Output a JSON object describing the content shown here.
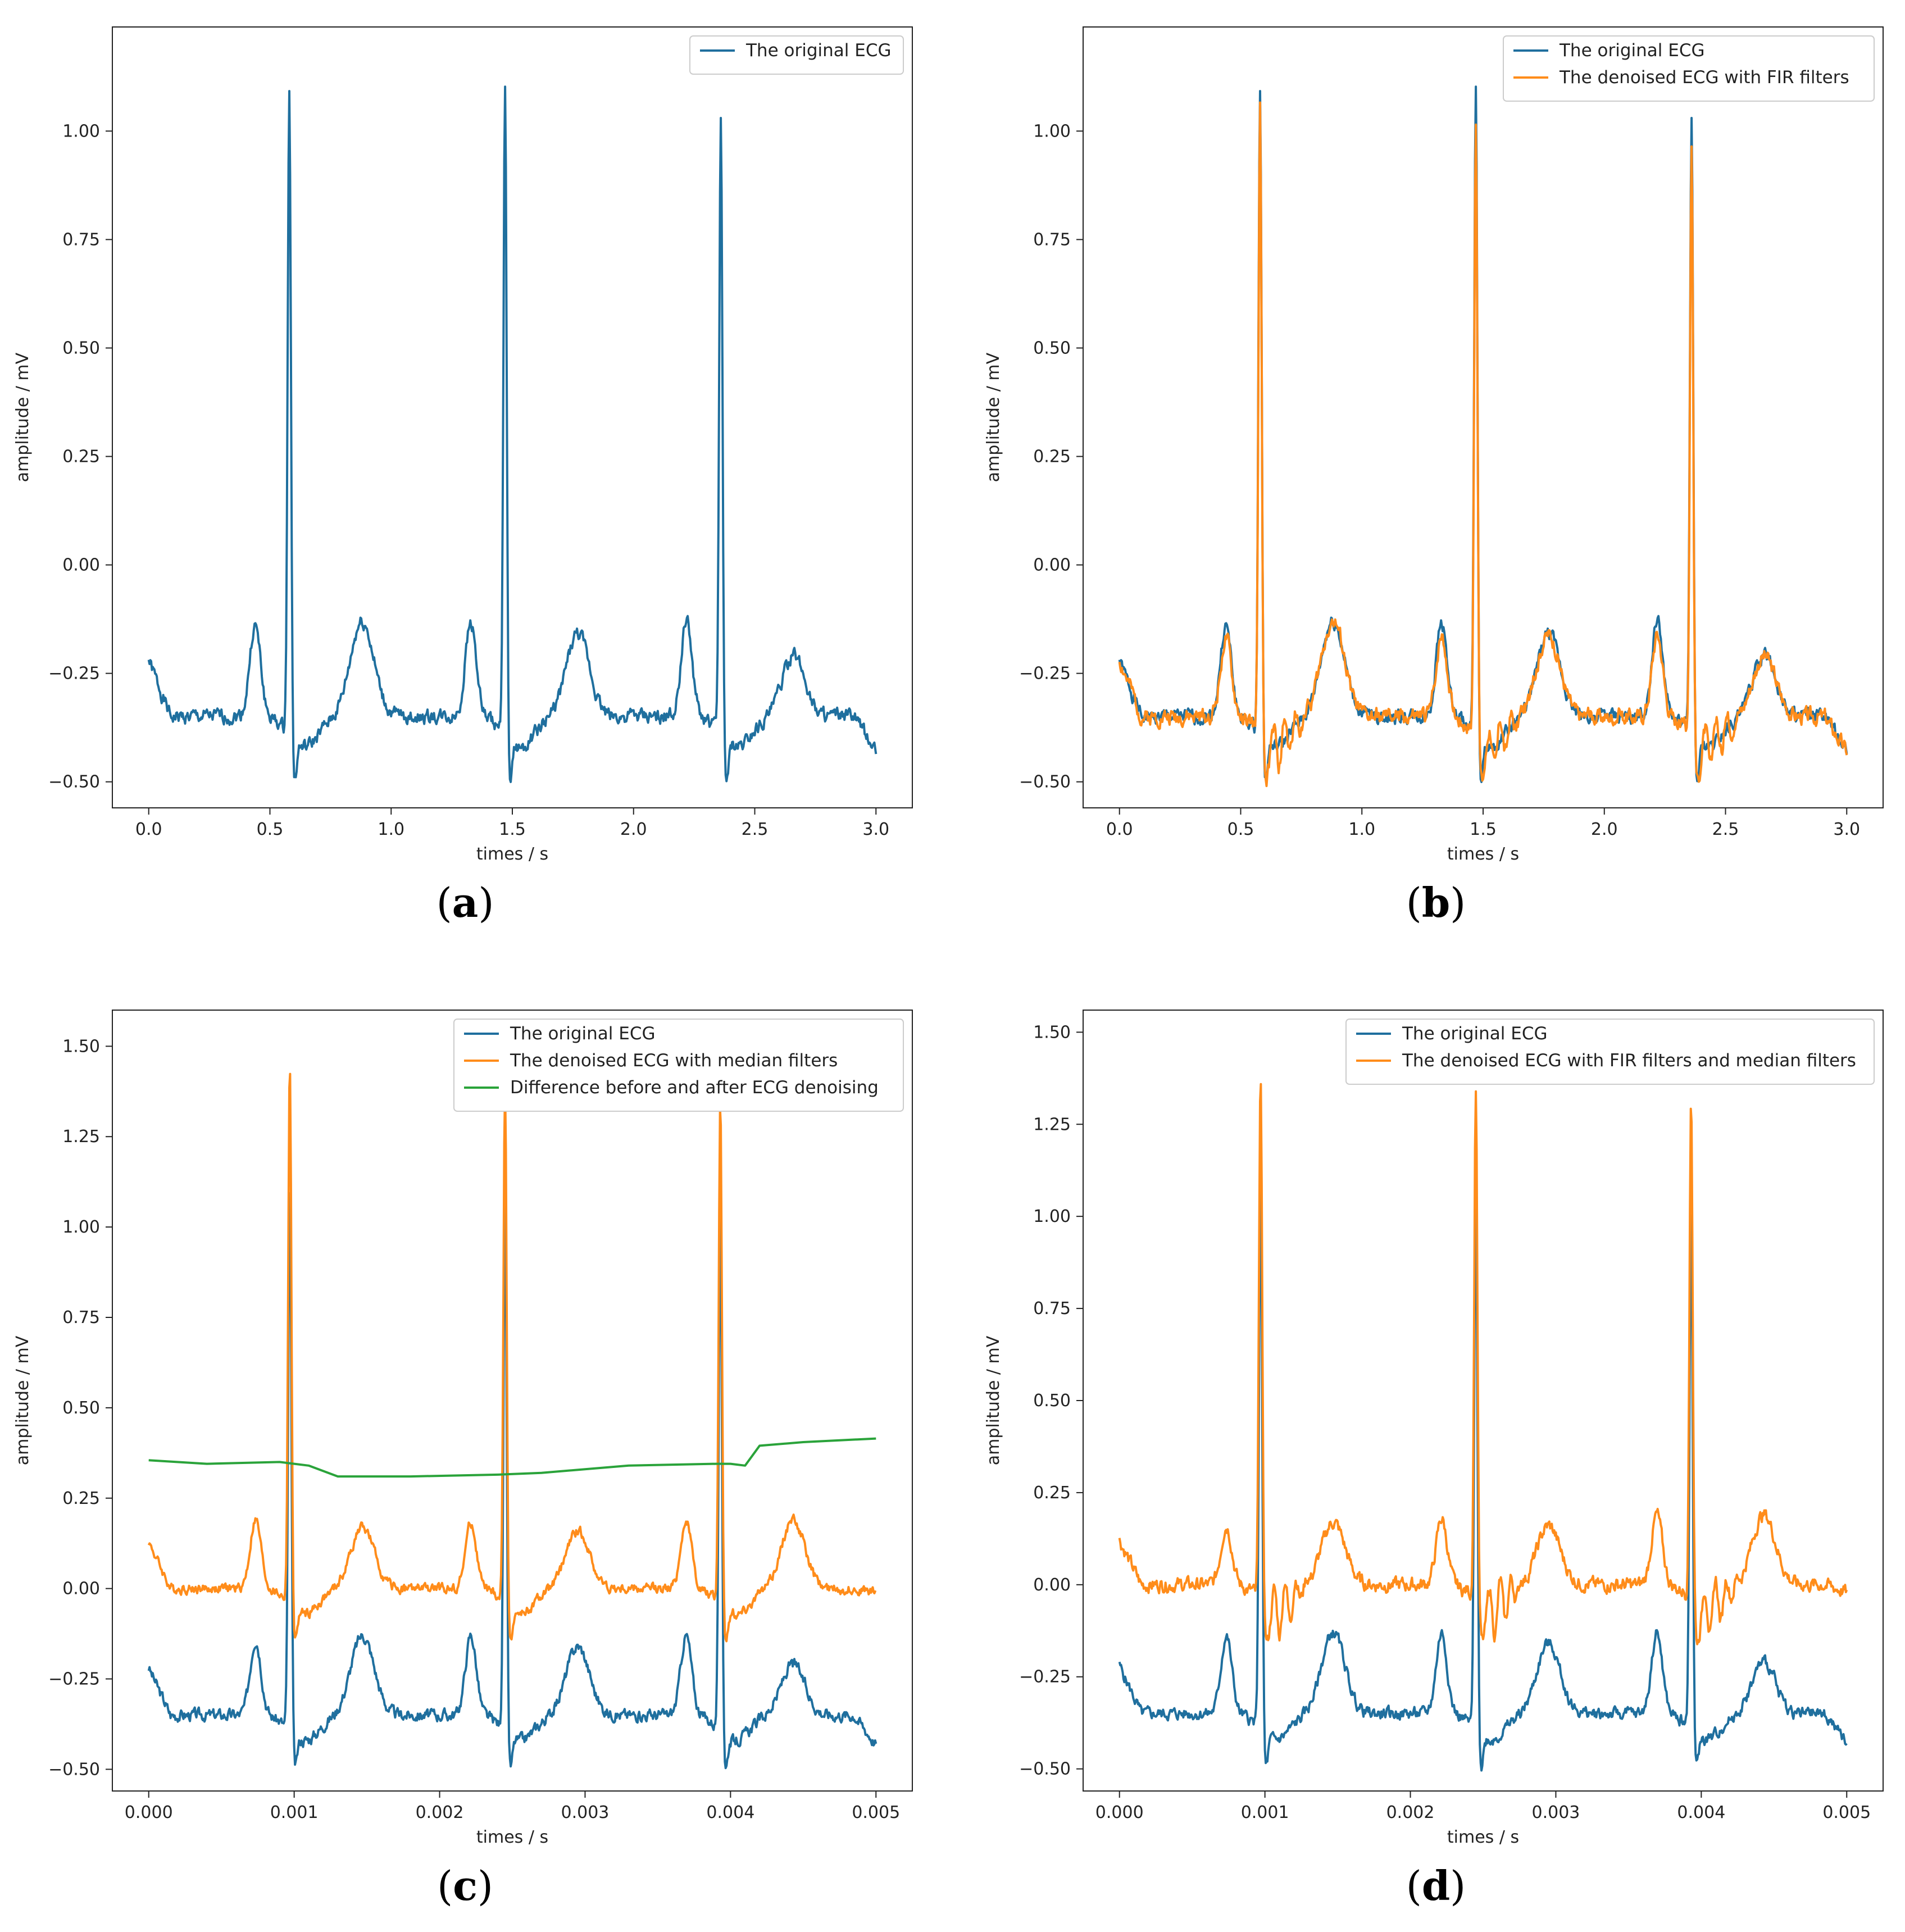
{
  "figure": {
    "panels": [
      "a",
      "b",
      "c",
      "d"
    ]
  },
  "colors": {
    "blue": "#1f6f9e",
    "orange": "#ff8c1a",
    "green": "#2aa33a",
    "axis": "#222222"
  },
  "chart_data": [
    {
      "id": "a",
      "caption_letter": "a",
      "type": "line",
      "xlabel": "times / s",
      "ylabel": "amplitude / mV",
      "xlim": [
        -0.15,
        3.15
      ],
      "ylim": [
        -0.56,
        1.24
      ],
      "xticks": [
        0.0,
        0.5,
        1.0,
        1.5,
        2.0,
        2.5,
        3.0
      ],
      "xtick_labels": [
        "0.0",
        "0.5",
        "1.0",
        "1.5",
        "2.0",
        "2.5",
        "3.0"
      ],
      "yticks": [
        -0.5,
        -0.25,
        0.0,
        0.25,
        0.5,
        0.75,
        1.0
      ],
      "ytick_labels": [
        "−0.50",
        "−0.25",
        "0.00",
        "0.25",
        "0.50",
        "0.75",
        "1.00"
      ],
      "legend": [
        "The original ECG"
      ],
      "series": [
        {
          "name": "The original ECG",
          "color": "blue",
          "x_range": [
            0,
            3
          ],
          "baseline": -0.35,
          "beats": [
            0.58,
            1.47,
            2.36
          ],
          "r_peaks": [
            1.16,
            1.14,
            1.08
          ],
          "p_heights": [
            0.21,
            0.22,
            0.22
          ],
          "t_heights": [
            0.22,
            0.19,
            0.14
          ],
          "noise": 0.012,
          "start": -0.22,
          "end": -0.43,
          "seed": 1
        }
      ]
    },
    {
      "id": "b",
      "caption_letter": "b",
      "type": "line",
      "xlabel": "times / s",
      "ylabel": "amplitude / mV",
      "xlim": [
        -0.15,
        3.15
      ],
      "ylim": [
        -0.56,
        1.24
      ],
      "xticks": [
        0.0,
        0.5,
        1.0,
        1.5,
        2.0,
        2.5,
        3.0
      ],
      "xtick_labels": [
        "0.0",
        "0.5",
        "1.0",
        "1.5",
        "2.0",
        "2.5",
        "3.0"
      ],
      "yticks": [
        -0.5,
        -0.25,
        0.0,
        0.25,
        0.5,
        0.75,
        1.0
      ],
      "ytick_labels": [
        "−0.50",
        "−0.25",
        "0.00",
        "0.25",
        "0.50",
        "0.75",
        "1.00"
      ],
      "legend": [
        "The original ECG",
        "The denoised ECG with FIR filters"
      ],
      "series": [
        {
          "name": "The original ECG",
          "color": "blue",
          "x_range": [
            0,
            3
          ],
          "baseline": -0.35,
          "beats": [
            0.58,
            1.47,
            2.36
          ],
          "r_peaks": [
            1.16,
            1.14,
            1.08
          ],
          "p_heights": [
            0.21,
            0.22,
            0.22
          ],
          "t_heights": [
            0.22,
            0.19,
            0.14
          ],
          "noise": 0.012,
          "start": -0.22,
          "end": -0.43,
          "seed": 1
        },
        {
          "name": "The denoised ECG with FIR filters",
          "color": "orange",
          "x_range": [
            0,
            3
          ],
          "baseline": -0.35,
          "beats": [
            0.58,
            1.47,
            2.36
          ],
          "r_peaks": [
            1.1,
            1.08,
            1.02
          ],
          "p_heights": [
            0.18,
            0.19,
            0.19
          ],
          "t_heights": [
            0.22,
            0.19,
            0.14
          ],
          "noise": 0.014,
          "start": -0.22,
          "end": -0.43,
          "seed": 2,
          "ringing": 0.05
        }
      ]
    },
    {
      "id": "c",
      "caption_letter": "c",
      "type": "line",
      "xlabel": "times / s",
      "ylabel": "amplitude / mV",
      "xlim": [
        -0.00025,
        0.00525
      ],
      "ylim": [
        -0.56,
        1.6
      ],
      "xticks": [
        0.0,
        0.001,
        0.002,
        0.003,
        0.004,
        0.005
      ],
      "xtick_labels": [
        "0.000",
        "0.001",
        "0.002",
        "0.003",
        "0.004",
        "0.005"
      ],
      "yticks": [
        -0.5,
        -0.25,
        0.0,
        0.25,
        0.5,
        0.75,
        1.0,
        1.25,
        1.5
      ],
      "ytick_labels": [
        "−0.50",
        "−0.25",
        "0.00",
        "0.25",
        "0.50",
        "0.75",
        "1.00",
        "1.25",
        "1.50"
      ],
      "legend": [
        "The original ECG",
        "The denoised ECG with median filters",
        "Difference before and after ECG denoising"
      ],
      "series": [
        {
          "name": "The original ECG",
          "color": "blue",
          "x_range": [
            0,
            0.005
          ],
          "baseline": -0.35,
          "beats": [
            0.00097,
            0.00245,
            0.00393
          ],
          "r_peaks": [
            1.16,
            1.14,
            1.08
          ],
          "p_heights": [
            0.21,
            0.22,
            0.22
          ],
          "t_heights": [
            0.22,
            0.19,
            0.14
          ],
          "noise": 0.012,
          "start": -0.22,
          "end": -0.43,
          "seed": 3
        },
        {
          "name": "The denoised ECG with median filters",
          "color": "orange",
          "x_range": [
            0,
            0.005
          ],
          "baseline": 0.0,
          "beats": [
            0.00097,
            0.00245,
            0.00393
          ],
          "r_peaks": [
            1.5,
            1.45,
            1.4
          ],
          "p_heights": [
            0.19,
            0.18,
            0.19
          ],
          "t_heights": [
            0.17,
            0.16,
            0.19
          ],
          "noise": 0.01,
          "start": 0.13,
          "end": -0.01,
          "seed": 4
        },
        {
          "name": "Difference before and after ECG denoising",
          "color": "green",
          "kind": "step",
          "x": [
            0,
            0.0004,
            0.0009,
            0.0011,
            0.0013,
            0.0018,
            0.0024,
            0.0027,
            0.0033,
            0.0039,
            0.004,
            0.0041,
            0.0042,
            0.0045,
            0.005
          ],
          "y": [
            0.355,
            0.345,
            0.35,
            0.34,
            0.31,
            0.31,
            0.315,
            0.32,
            0.34,
            0.345,
            0.345,
            0.34,
            0.395,
            0.405,
            0.415
          ]
        }
      ]
    },
    {
      "id": "d",
      "caption_letter": "d",
      "type": "line",
      "xlabel": "times / s",
      "ylabel": "amplitude / mV",
      "xlim": [
        -0.00025,
        0.00525
      ],
      "ylim": [
        -0.56,
        1.56
      ],
      "xticks": [
        0.0,
        0.001,
        0.002,
        0.003,
        0.004,
        0.005
      ],
      "xtick_labels": [
        "0.000",
        "0.001",
        "0.002",
        "0.003",
        "0.004",
        "0.005"
      ],
      "yticks": [
        -0.5,
        -0.25,
        0.0,
        0.25,
        0.5,
        0.75,
        1.0,
        1.25,
        1.5
      ],
      "ytick_labels": [
        "−0.50",
        "−0.25",
        "0.00",
        "0.25",
        "0.50",
        "0.75",
        "1.00",
        "1.25",
        "1.50"
      ],
      "legend": [
        "The original ECG",
        "The denoised ECG with FIR filters and median filters"
      ],
      "series": [
        {
          "name": "The original ECG",
          "color": "blue",
          "x_range": [
            0,
            0.005
          ],
          "baseline": -0.35,
          "beats": [
            0.00097,
            0.00245,
            0.00393
          ],
          "r_peaks": [
            1.16,
            1.14,
            1.08
          ],
          "p_heights": [
            0.21,
            0.22,
            0.22
          ],
          "t_heights": [
            0.22,
            0.19,
            0.14
          ],
          "noise": 0.012,
          "start": -0.22,
          "end": -0.43,
          "seed": 5
        },
        {
          "name": "The denoised ECG with FIR filters and median filters",
          "color": "orange",
          "x_range": [
            0,
            0.005
          ],
          "baseline": 0.0,
          "beats": [
            0.00097,
            0.00245,
            0.00393
          ],
          "r_peaks": [
            1.44,
            1.4,
            1.38
          ],
          "p_heights": [
            0.16,
            0.18,
            0.19
          ],
          "t_heights": [
            0.17,
            0.16,
            0.19
          ],
          "noise": 0.014,
          "start": 0.12,
          "end": -0.02,
          "seed": 6,
          "ringing": 0.07
        }
      ]
    }
  ]
}
